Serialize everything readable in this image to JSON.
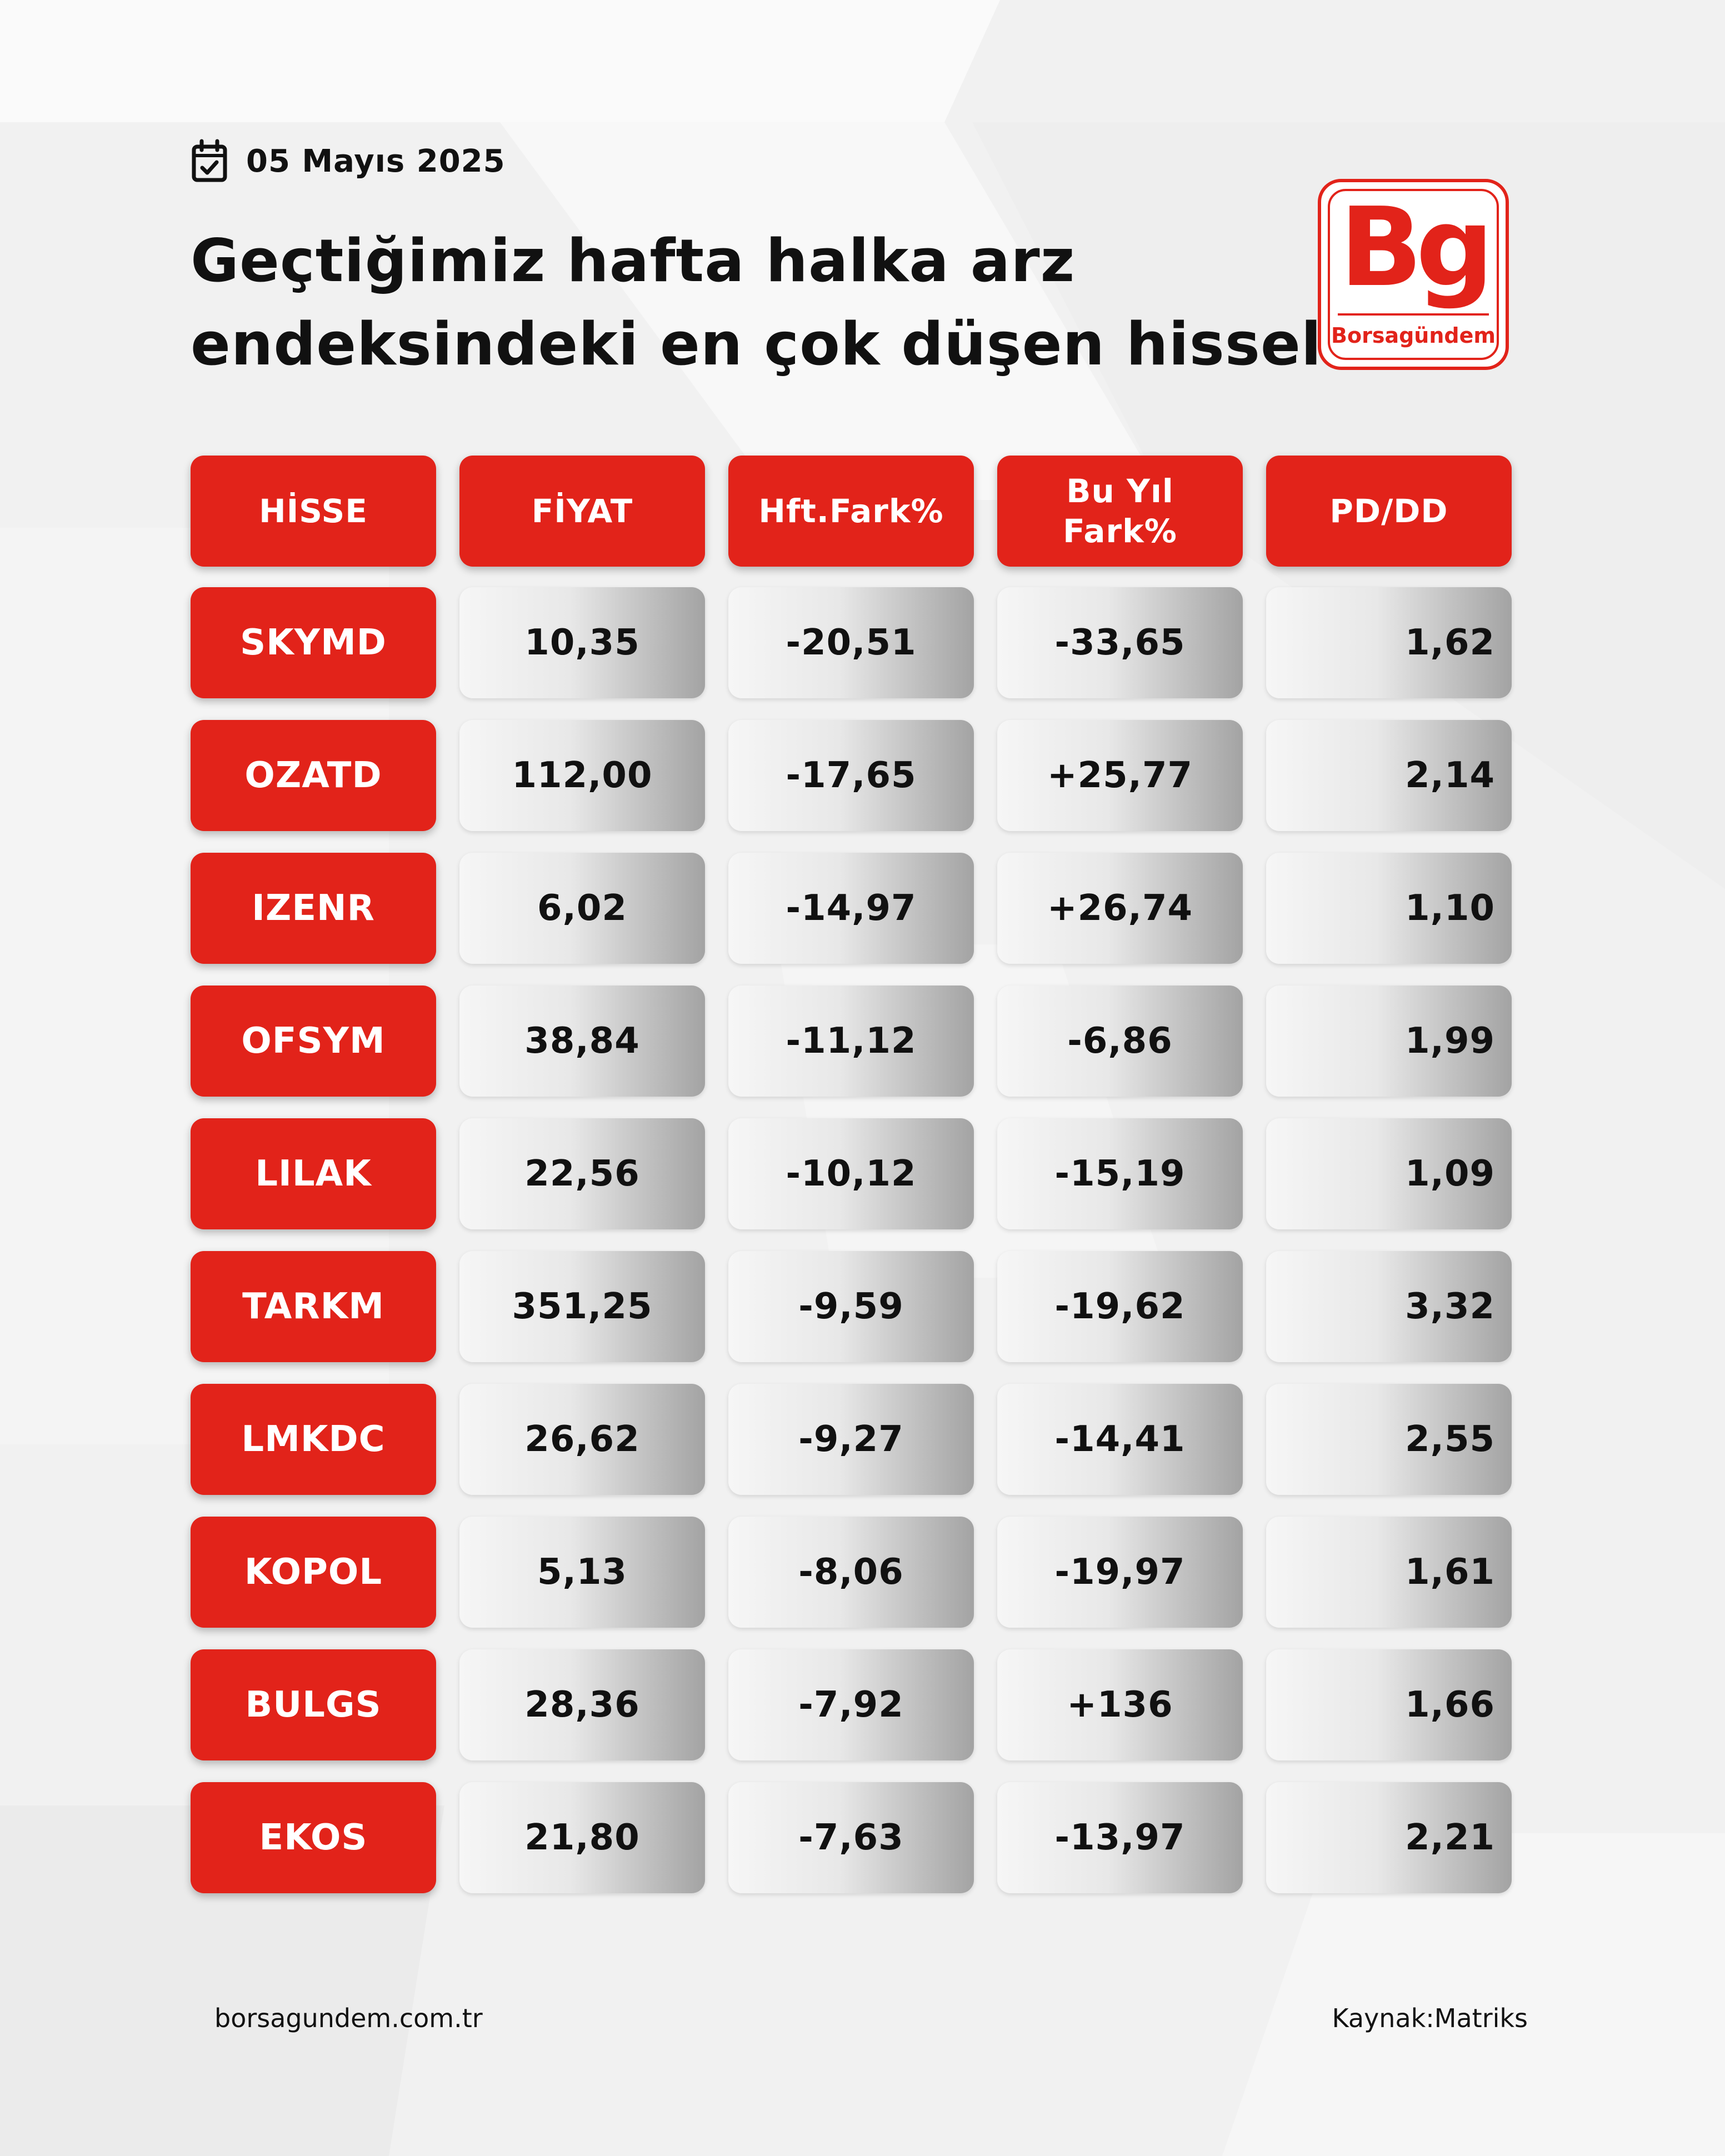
{
  "date": "05 Mayıs 2025",
  "title": {
    "line1": "Geçtiğimiz hafta halka arz",
    "line2": "endeksindeki en çok düşen hisseler"
  },
  "logo": {
    "letters": "Bg",
    "brand": "Borsagündem"
  },
  "colors": {
    "accent": "#e2231a",
    "text": "#111111",
    "background": "#f1f1f1"
  },
  "icons": {
    "calendar": "calendar-check-icon"
  },
  "table": {
    "headers": [
      "HİSSE",
      "FİYAT",
      "Hft.Fark%",
      "Bu Yıl\nFark%",
      "PD/DD"
    ],
    "rows": [
      {
        "hisse": "SKYMD",
        "fiyat": "10,35",
        "hft": "-20,51",
        "yil": "-33,65",
        "pddd": "1,62"
      },
      {
        "hisse": "OZATD",
        "fiyat": "112,00",
        "hft": "-17,65",
        "yil": "+25,77",
        "pddd": "2,14"
      },
      {
        "hisse": "IZENR",
        "fiyat": "6,02",
        "hft": "-14,97",
        "yil": "+26,74",
        "pddd": "1,10"
      },
      {
        "hisse": "OFSYM",
        "fiyat": "38,84",
        "hft": "-11,12",
        "yil": "-6,86",
        "pddd": "1,99"
      },
      {
        "hisse": "LILAK",
        "fiyat": "22,56",
        "hft": "-10,12",
        "yil": "-15,19",
        "pddd": "1,09"
      },
      {
        "hisse": "TARKM",
        "fiyat": "351,25",
        "hft": "-9,59",
        "yil": "-19,62",
        "pddd": "3,32"
      },
      {
        "hisse": "LMKDC",
        "fiyat": "26,62",
        "hft": "-9,27",
        "yil": "-14,41",
        "pddd": "2,55"
      },
      {
        "hisse": "KOPOL",
        "fiyat": "5,13",
        "hft": "-8,06",
        "yil": "-19,97",
        "pddd": "1,61"
      },
      {
        "hisse": "BULGS",
        "fiyat": "28,36",
        "hft": "-7,92",
        "yil": "+136",
        "pddd": "1,66"
      },
      {
        "hisse": "EKOS",
        "fiyat": "21,80",
        "hft": "-7,63",
        "yil": "-13,97",
        "pddd": "2,21"
      }
    ]
  },
  "footer": {
    "website": "borsagundem.com.tr",
    "source": "Kaynak:Matriks"
  }
}
